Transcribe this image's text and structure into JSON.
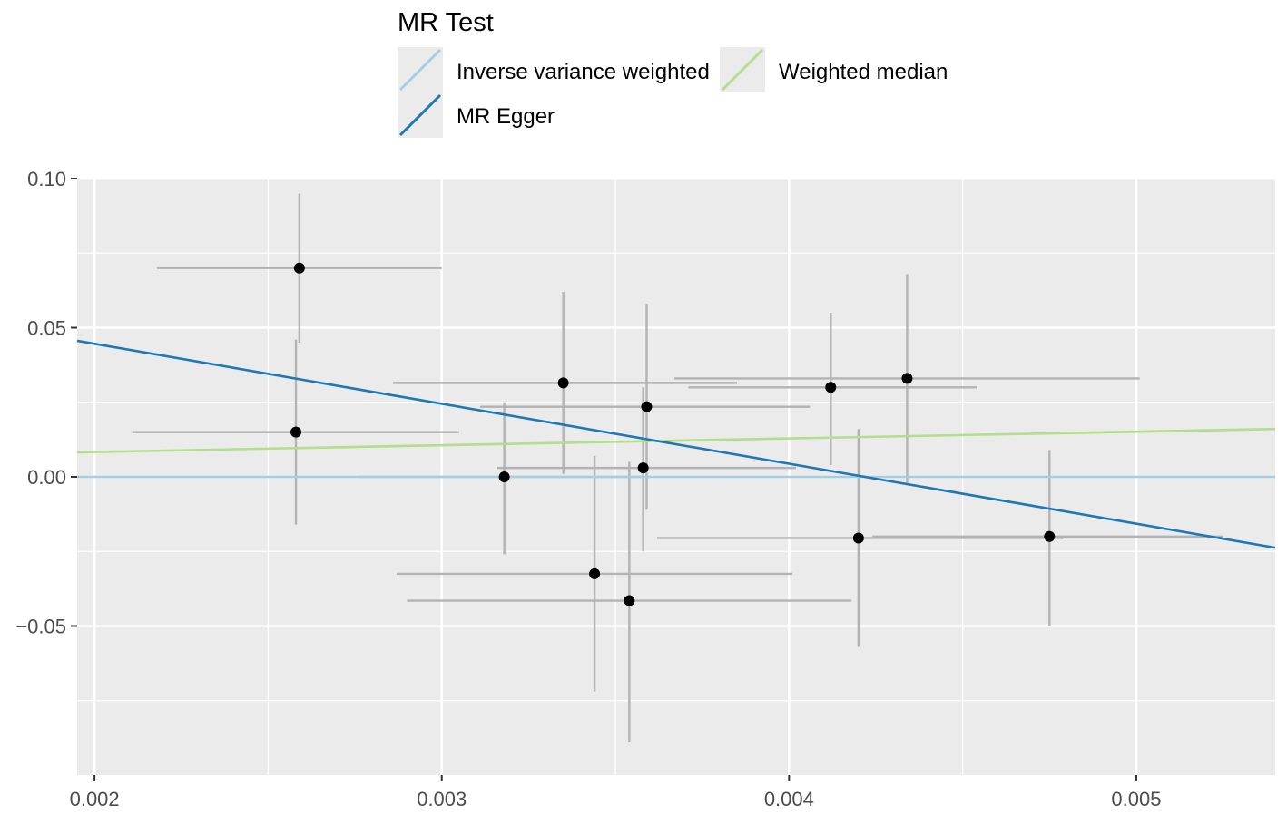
{
  "chart_data": {
    "type": "scatter",
    "title": "",
    "xlabel": "",
    "ylabel": "",
    "xlim": [
      0.00195,
      0.0054
    ],
    "ylim": [
      -0.1,
      0.1
    ],
    "x_ticks": [
      0.002,
      0.003,
      0.004,
      0.005
    ],
    "x_tick_labels": [
      "0.002",
      "0.003",
      "0.004",
      "0.005"
    ],
    "y_ticks": [
      0.1,
      0.05,
      0.0,
      -0.05
    ],
    "y_tick_labels": [
      "0.10",
      "0.05",
      "0.00",
      "−0.05"
    ],
    "grid": true,
    "legend": {
      "title": "MR Test",
      "placement": "top",
      "entries": [
        {
          "label": "Inverse variance weighted",
          "color": "#a6cee3"
        },
        {
          "label": "Weighted median",
          "color": "#b2df8a"
        },
        {
          "label": "MR Egger",
          "color": "#1f78b4"
        }
      ]
    },
    "points": [
      {
        "x": 0.00259,
        "y": 0.07,
        "x_lo": 0.00218,
        "x_hi": 0.003,
        "y_lo": 0.045,
        "y_hi": 0.095
      },
      {
        "x": 0.00258,
        "y": 0.015,
        "x_lo": 0.00211,
        "x_hi": 0.00305,
        "y_lo": -0.016,
        "y_hi": 0.046
      },
      {
        "x": 0.00335,
        "y": 0.0315,
        "x_lo": 0.00286,
        "x_hi": 0.00385,
        "y_lo": 0.001,
        "y_hi": 0.062
      },
      {
        "x": 0.00318,
        "y": 0.0,
        "x_lo": 0.00276,
        "x_hi": 0.0036,
        "y_lo": -0.026,
        "y_hi": 0.025
      },
      {
        "x": 0.00359,
        "y": 0.0235,
        "x_lo": 0.00311,
        "x_hi": 0.00406,
        "y_lo": -0.011,
        "y_hi": 0.058
      },
      {
        "x": 0.00358,
        "y": 0.003,
        "x_lo": 0.00316,
        "x_hi": 0.00402,
        "y_lo": -0.025,
        "y_hi": 0.03
      },
      {
        "x": 0.00344,
        "y": -0.0325,
        "x_lo": 0.00287,
        "x_hi": 0.00401,
        "y_lo": -0.072,
        "y_hi": 0.007
      },
      {
        "x": 0.00354,
        "y": -0.0415,
        "x_lo": 0.0029,
        "x_hi": 0.00418,
        "y_lo": -0.089,
        "y_hi": 0.005
      },
      {
        "x": 0.00412,
        "y": 0.03,
        "x_lo": 0.00371,
        "x_hi": 0.00454,
        "y_lo": 0.004,
        "y_hi": 0.055
      },
      {
        "x": 0.00434,
        "y": 0.033,
        "x_lo": 0.00367,
        "x_hi": 0.00501,
        "y_lo": -0.002,
        "y_hi": 0.068
      },
      {
        "x": 0.0042,
        "y": -0.0205,
        "x_lo": 0.00362,
        "x_hi": 0.00479,
        "y_lo": -0.057,
        "y_hi": 0.016
      },
      {
        "x": 0.00475,
        "y": -0.02,
        "x_lo": 0.00424,
        "x_hi": 0.00525,
        "y_lo": -0.05,
        "y_hi": 0.009
      }
    ],
    "lines": [
      {
        "name": "Inverse variance weighted",
        "color": "#a6cee3",
        "intercept": 0.0,
        "slope": 0.0
      },
      {
        "name": "Weighted median",
        "color": "#b2df8a",
        "intercept": 0.0038,
        "slope": 2.27
      },
      {
        "name": "MR Egger",
        "color": "#1f78b4",
        "intercept": 0.0848,
        "slope": -20.1
      }
    ]
  }
}
